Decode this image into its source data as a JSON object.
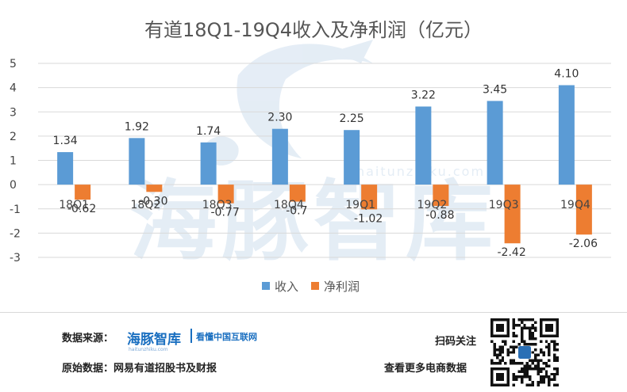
{
  "chart_data": {
    "type": "bar",
    "title": "有道18Q1-19Q4收入及净利润（亿元）",
    "categories": [
      "18Q1",
      "18Q2",
      "18Q3",
      "18Q4",
      "19Q1",
      "19Q2",
      "19Q3",
      "19Q4"
    ],
    "series": [
      {
        "name": "收入",
        "values": [
          1.34,
          1.92,
          1.74,
          2.3,
          2.25,
          3.22,
          3.45,
          4.1
        ],
        "labels": [
          "1.34",
          "1.92",
          "1.74",
          "2.30",
          "2.25",
          "3.22",
          "3.45",
          "4.10"
        ],
        "color": "#5b9bd5"
      },
      {
        "name": "净利润",
        "values": [
          -0.62,
          -0.3,
          -0.77,
          -0.7,
          -1.02,
          -0.88,
          -2.42,
          -2.06
        ],
        "labels": [
          "-0.62",
          "-0.30",
          "-0.77",
          "-0.7",
          "-1.02",
          "-0.88",
          "-2.42",
          "-2.06"
        ],
        "color": "#ed7d31"
      }
    ],
    "ylim": [
      -3,
      5
    ],
    "yticks": [
      -3,
      -2,
      -1,
      0,
      1,
      2,
      3,
      4,
      5
    ],
    "grid": true,
    "legend": "bottom-center",
    "xlabel": "",
    "ylabel": ""
  },
  "watermark": {
    "text": "海豚智库",
    "url": "haitunzhiku.com"
  },
  "footer": {
    "source_label": "数据来源：",
    "brand_name": "海豚智库",
    "brand_url": "haitunzhiku.com",
    "brand_tagline": "看懂中国互联网",
    "original_data": "原始数据：网易有道招股书及财报",
    "scan_follow": "扫码关注",
    "more_data": "查看更多电商数据"
  }
}
